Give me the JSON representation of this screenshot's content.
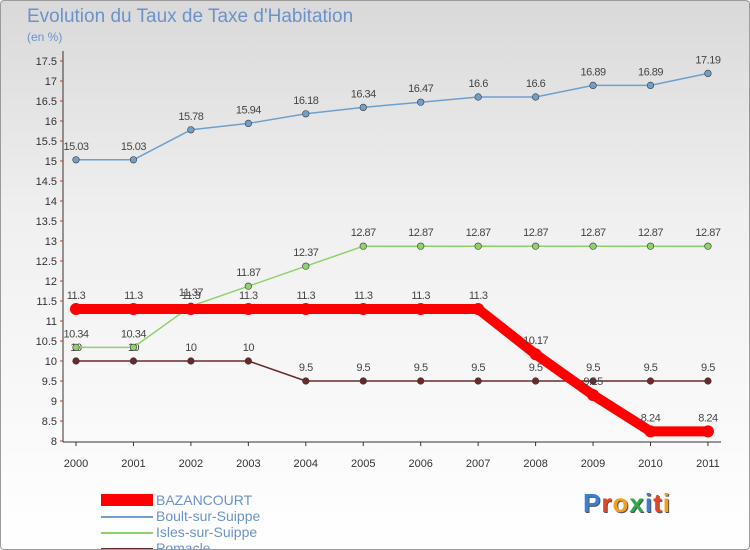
{
  "title": "Evolution du Taux de Taxe d'Habitation",
  "subtitle": "(en %)",
  "logo": {
    "text": "Proxiti",
    "letters": [
      {
        "ch": "P",
        "color": "#3a7fd0"
      },
      {
        "ch": "r",
        "color": "#e0462a"
      },
      {
        "ch": "o",
        "color": "#f0a020"
      },
      {
        "ch": "x",
        "color": "#2ea84a"
      },
      {
        "ch": "i",
        "color": "#3a7fd0"
      },
      {
        "ch": "t",
        "color": "#e0462a"
      },
      {
        "ch": "i",
        "color": "#f0a020"
      }
    ]
  },
  "chart_data": {
    "type": "line",
    "title": "Evolution du Taux de Taxe d'Habitation",
    "ylabel": "(en %)",
    "xlabel": "",
    "ylim": [
      8,
      17.5
    ],
    "grid": false,
    "legend_position": "bottom-left",
    "x": [
      "2000",
      "2001",
      "2002",
      "2003",
      "2004",
      "2005",
      "2006",
      "2007",
      "2008",
      "2009",
      "2010",
      "2011"
    ],
    "y_ticks": [
      "8",
      "8.5",
      "9",
      "9.5",
      "10",
      "10.5",
      "11",
      "11.5",
      "12",
      "12.5",
      "13",
      "13.5",
      "14",
      "14.5",
      "15",
      "15.5",
      "16",
      "16.5",
      "17",
      "17.5"
    ],
    "series": [
      {
        "name": "Pomacle",
        "color": "#6b2a2a",
        "values": [
          10,
          10,
          10,
          10,
          9.5,
          9.5,
          9.5,
          9.5,
          9.5,
          9.5,
          9.5,
          9.5
        ],
        "labels": [
          "10",
          "10",
          "10",
          "10",
          "9.5",
          "9.5",
          "9.5",
          "9.5",
          "9.5",
          "9.5",
          "9.5",
          "9.5"
        ]
      },
      {
        "name": "Isles-sur-Suippe",
        "color": "#8fd16a",
        "values": [
          10.34,
          10.34,
          11.37,
          11.87,
          12.37,
          12.87,
          12.87,
          12.87,
          12.87,
          12.87,
          12.87,
          12.87
        ],
        "labels": [
          "10.34",
          "10.34",
          "11.37",
          "11.87",
          "12.37",
          "12.87",
          "12.87",
          "12.87",
          "12.87",
          "12.87",
          "12.87",
          "12.87"
        ]
      },
      {
        "name": "Boult-sur-Suippe",
        "color": "#6fa0cc",
        "values": [
          15.03,
          15.03,
          15.78,
          15.94,
          16.18,
          16.34,
          16.47,
          16.6,
          16.6,
          16.89,
          16.89,
          17.19
        ],
        "labels": [
          "15.03",
          "15.03",
          "15.78",
          "15.94",
          "16.18",
          "16.34",
          "16.47",
          "16.6",
          "16.6",
          "16.89",
          "16.89",
          "17.19"
        ]
      },
      {
        "name": "BAZANCOURT",
        "color": "#ff0000",
        "values": [
          11.3,
          11.3,
          11.3,
          11.3,
          11.3,
          11.3,
          11.3,
          11.3,
          10.17,
          9.15,
          8.24,
          8.24
        ],
        "labels": [
          "11.3",
          "11.3",
          "11.3",
          "11.3",
          "11.3",
          "11.3",
          "11.3",
          "11.3",
          "10.17",
          "9.15",
          "8.24",
          "8.24"
        ]
      }
    ],
    "legend": [
      "BAZANCOURT",
      "Boult-sur-Suippe",
      "Isles-sur-Suippe",
      "Pomacle"
    ]
  }
}
